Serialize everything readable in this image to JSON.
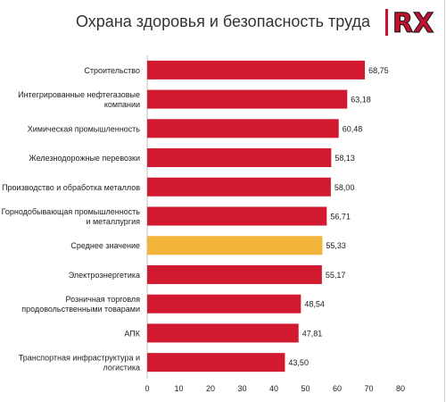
{
  "title": "Охрана здоровья и безопасность труда",
  "logo": {
    "text": "RX",
    "icon": "rx-logo-icon"
  },
  "colors": {
    "bar": "#d11a2f",
    "highlight": "#f2b43a",
    "axis": "#bfbfbf",
    "text": "#222222",
    "logo_red": "#c8102e",
    "logo_dark": "#231f20"
  },
  "chart_data": {
    "type": "bar",
    "orientation": "horizontal",
    "title": "Охрана здоровья и безопасность труда",
    "categories": [
      [
        "Строительство"
      ],
      [
        "Интегрированные нефтегазовые",
        "компании"
      ],
      [
        "Химическая промышленность"
      ],
      [
        "Железнодорожные перевозки"
      ],
      [
        "Производство и обработка металлов"
      ],
      [
        "Горнодобывающая промышленность",
        "и металлургия"
      ],
      [
        "Среднее значение"
      ],
      [
        "Электроэнергетика"
      ],
      [
        "Розничная торговля",
        "продовольственными товарами"
      ],
      [
        "АПК"
      ],
      [
        "Транспортная инфраструктура и",
        "логистика"
      ]
    ],
    "values": [
      68.75,
      63.18,
      60.48,
      58.13,
      58.0,
      56.71,
      55.33,
      55.17,
      48.54,
      47.81,
      43.5
    ],
    "value_labels": [
      "68,75",
      "63,18",
      "60,48",
      "58,13",
      "58,00",
      "56,71",
      "55,33",
      "55,17",
      "48,54",
      "47,81",
      "43,50"
    ],
    "highlight_index": 6,
    "xlim": [
      0,
      80
    ],
    "xticks": [
      0,
      10,
      20,
      30,
      40,
      50,
      60,
      70,
      80
    ],
    "grid": false,
    "xlabel": "",
    "ylabel": ""
  }
}
